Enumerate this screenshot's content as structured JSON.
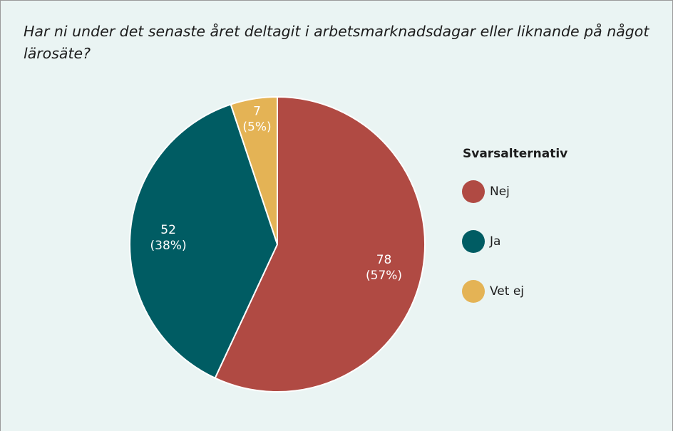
{
  "chart_data": {
    "type": "pie",
    "title": "Har ni under det senaste året deltagit i arbetsmarknadsdagar eller liknande på något lärosäte?",
    "legend_title": "Svarsalternativ",
    "categories": [
      "Nej",
      "Ja",
      "Vet ej"
    ],
    "values": [
      78,
      52,
      7
    ],
    "shares": [
      57,
      38,
      5
    ],
    "share_labels": [
      "(57%)",
      "(38%)",
      "(5%)"
    ],
    "colors": [
      "#b04a43",
      "#005c63",
      "#e4b355"
    ],
    "legend": "right"
  }
}
